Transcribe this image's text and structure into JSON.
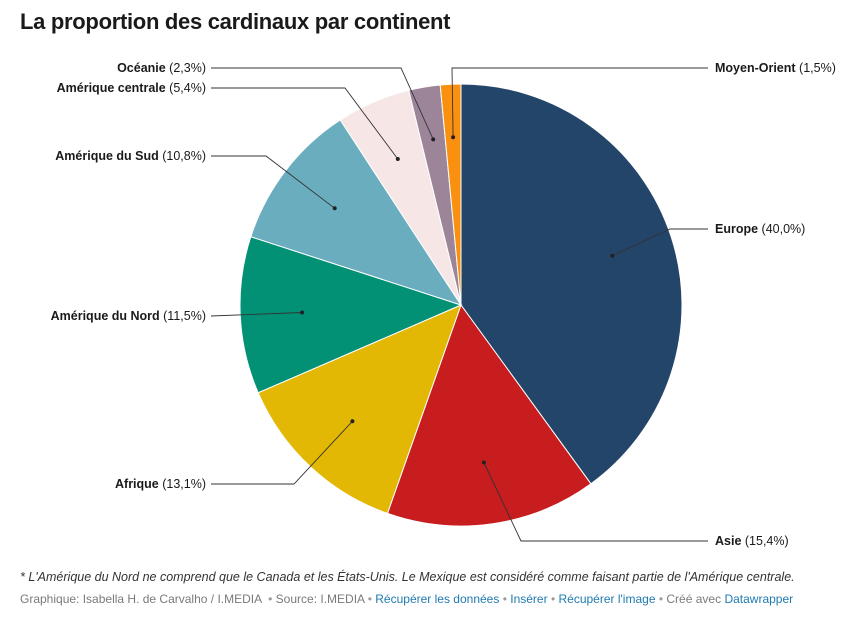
{
  "title": "La proportion des cardinaux par continent",
  "chart_data": {
    "type": "pie",
    "start_angle_deg": 0,
    "direction": "clockwise",
    "slices": [
      {
        "label": "Europe",
        "value": 40.0,
        "value_text": "(40,0%)",
        "color": "#234569"
      },
      {
        "label": "Asie",
        "value": 15.4,
        "value_text": "(15,4%)",
        "color": "#c71d1f"
      },
      {
        "label": "Afrique",
        "value": 13.1,
        "value_text": "(13,1%)",
        "color": "#e2b805"
      },
      {
        "label": "Amérique du Nord",
        "value": 11.5,
        "value_text": "(11,5%)",
        "color": "#039176"
      },
      {
        "label": "Amérique du Sud",
        "value": 10.8,
        "value_text": "(10,8%)",
        "color": "#6aadbf"
      },
      {
        "label": "Amérique centrale",
        "value": 5.4,
        "value_text": "(5,4%)",
        "color": "#f6e7e6"
      },
      {
        "label": "Océanie",
        "value": 2.3,
        "value_text": "(2,3%)",
        "color": "#9d8599"
      },
      {
        "label": "Moyen-Orient",
        "value": 1.5,
        "value_text": "(1,5%)",
        "color": "#f9900f"
      }
    ]
  },
  "note": "* L'Amérique du Nord ne comprend que le Canada et les États-Unis. Le Mexique est considéré comme faisant partie de l'Amérique centrale.",
  "footer": {
    "credit": "Graphique: Isabella H. de Carvalho / I.MEDIA",
    "source": "Source: I.MEDIA",
    "get_data": "Récupérer les données",
    "embed": "Insérer",
    "get_image": "Récupérer l'image",
    "made_with": "Créé avec",
    "tool": "Datawrapper"
  }
}
